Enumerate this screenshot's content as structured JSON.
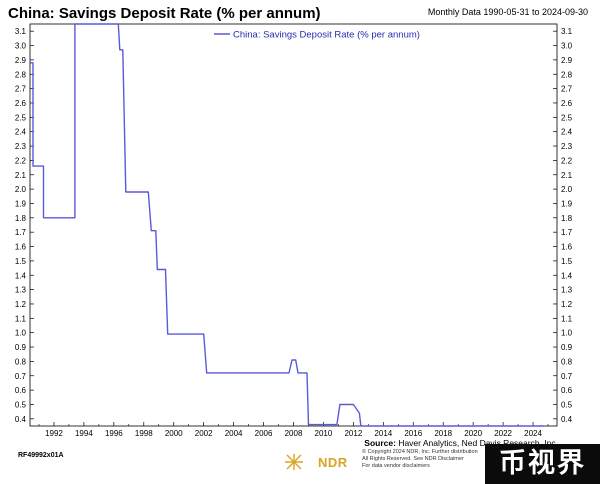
{
  "header": {
    "title": "China: Savings Deposit Rate (% per annum)",
    "date_range": "Monthly Data 1990-05-31 to 2024-09-30"
  },
  "footer": {
    "source_label": "Source:",
    "source_text": "Haver Analytics, Ned Davis Research, Inc.",
    "chart_code": "RF49992x01A",
    "logo_text": "NDR",
    "copyright_lines": [
      "© Copyright 2024 NDR, Inc. Further distribution",
      "All Rights Reserved. See NDR Disclaimer",
      "For data vendor disclaimers"
    ],
    "watermark": "币视界"
  },
  "colors": {
    "series": "#5a5ad6",
    "axis": "#000000",
    "background": "#ffffff"
  },
  "chart_data": {
    "type": "line",
    "title": "China: Savings Deposit Rate (% per annum)",
    "xlabel": "",
    "ylabel": "",
    "xlim": [
      1990.4,
      2025.6
    ],
    "ylim": [
      0.35,
      3.15
    ],
    "grid": false,
    "legend_position": "top",
    "y_ticks": [
      3.1,
      3.0,
      2.9,
      2.8,
      2.7,
      2.6,
      2.5,
      2.4,
      2.3,
      2.2,
      2.1,
      2.0,
      1.9,
      1.8,
      1.7,
      1.6,
      1.5,
      1.4,
      1.3,
      1.2,
      1.1,
      1.0,
      0.9,
      0.8,
      0.7,
      0.6,
      0.5,
      0.4
    ],
    "y_tick_labels": [
      "3.1",
      "3.0",
      "2.9",
      "2.8",
      "2.7",
      "2.6",
      "2.5",
      "2.4",
      "2.3",
      "2.2",
      "2.1",
      "2.0",
      "1.9",
      "1.8",
      "1.7",
      "1.6",
      "1.5",
      "1.4",
      "1.3",
      "1.2",
      "1.1",
      "1.0",
      "0.9",
      "0.8",
      "0.7",
      "0.6",
      "0.5",
      "0.4"
    ],
    "x_ticks": [
      1992,
      1994,
      1996,
      1998,
      2000,
      2002,
      2004,
      2006,
      2008,
      2010,
      2012,
      2014,
      2016,
      2018,
      2020,
      2022,
      2024
    ],
    "x_tick_labels": [
      "1992",
      "1994",
      "1996",
      "1998",
      "2000",
      "2002",
      "2004",
      "2006",
      "2008",
      "2010",
      "2012",
      "2014",
      "2016",
      "2018",
      "2020",
      "2022",
      "2024"
    ],
    "series": [
      {
        "name": "China: Savings Deposit Rate (% per annum)",
        "x": [
          1990.42,
          1990.6,
          1990.6,
          1991.3,
          1991.3,
          1993.4,
          1993.4,
          1996.3,
          1996.4,
          1996.6,
          1996.8,
          1997.8,
          1997.8,
          1998.3,
          1998.5,
          1998.8,
          1998.9,
          1999.45,
          1999.6,
          2002.0,
          2002.2,
          2007.7,
          2007.9,
          2008.15,
          2008.3,
          2008.9,
          2009.0,
          2010.9,
          2011.1,
          2011.9,
          2012.0,
          2012.4,
          2012.5,
          2015.9,
          2016.0,
          2024.75
        ],
        "y": [
          2.88,
          2.88,
          2.16,
          2.16,
          1.8,
          1.8,
          3.15,
          3.15,
          2.97,
          2.97,
          1.98,
          1.98,
          1.98,
          1.98,
          1.71,
          1.71,
          1.44,
          1.44,
          0.99,
          0.99,
          0.72,
          0.72,
          0.81,
          0.81,
          0.72,
          0.72,
          0.36,
          0.36,
          0.5,
          0.5,
          0.5,
          0.44,
          0.35,
          0.35,
          0.35,
          0.35
        ]
      }
    ]
  }
}
